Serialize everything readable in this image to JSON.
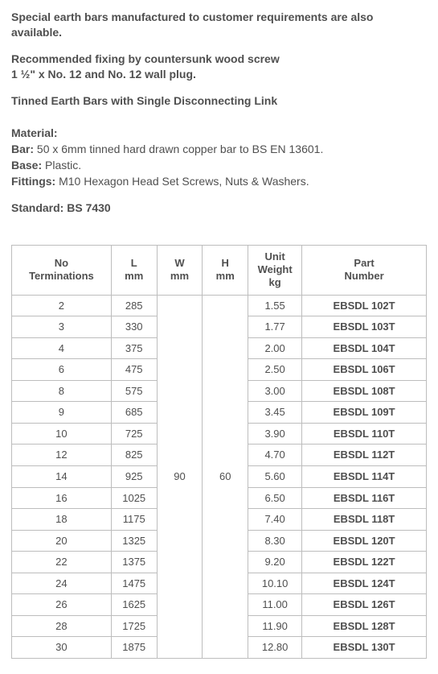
{
  "intro": {
    "p1": "Special earth bars manufactured to customer requirements are also available.",
    "p2a": "Recommended fixing by countersunk wood screw",
    "p2b": "1 ½\" x No. 12 and No. 12 wall plug.",
    "p3": "Tinned Earth Bars with Single Disconnecting Link"
  },
  "material": {
    "heading": "Material:",
    "bar_label": "Bar:",
    "bar_value": " 50 x 6mm tinned hard drawn copper bar to BS EN 13601.",
    "base_label": "Base:",
    "base_value": " Plastic.",
    "fittings_label": "Fittings:",
    "fittings_value": " M10 Hexagon Head Set Screws, Nuts & Washers."
  },
  "standard_label": "Standard: BS 7430",
  "table": {
    "headers": {
      "terminations_l1": "No",
      "terminations_l2": "Terminations",
      "L_l1": "L",
      "L_l2": "mm",
      "W_l1": "W",
      "W_l2": "mm",
      "H_l1": "H",
      "H_l2": "mm",
      "weight_l1": "Unit",
      "weight_l2": "Weight",
      "weight_l3": "kg",
      "part_l1": "Part",
      "part_l2": "Number"
    },
    "shared": {
      "W": "90",
      "H": "60"
    },
    "rows": [
      {
        "term": "2",
        "L": "285",
        "wt": "1.55",
        "part": "EBSDL 102T"
      },
      {
        "term": "3",
        "L": "330",
        "wt": "1.77",
        "part": "EBSDL 103T"
      },
      {
        "term": "4",
        "L": "375",
        "wt": "2.00",
        "part": "EBSDL 104T"
      },
      {
        "term": "6",
        "L": "475",
        "wt": "2.50",
        "part": "EBSDL 106T"
      },
      {
        "term": "8",
        "L": "575",
        "wt": "3.00",
        "part": "EBSDL 108T"
      },
      {
        "term": "9",
        "L": "685",
        "wt": "3.45",
        "part": "EBSDL 109T"
      },
      {
        "term": "10",
        "L": "725",
        "wt": "3.90",
        "part": "EBSDL 110T"
      },
      {
        "term": "12",
        "L": "825",
        "wt": "4.70",
        "part": "EBSDL 112T"
      },
      {
        "term": "14",
        "L": "925",
        "wt": "5.60",
        "part": "EBSDL 114T"
      },
      {
        "term": "16",
        "L": "1025",
        "wt": "6.50",
        "part": "EBSDL 116T"
      },
      {
        "term": "18",
        "L": "1175",
        "wt": "7.40",
        "part": "EBSDL 118T"
      },
      {
        "term": "20",
        "L": "1325",
        "wt": "8.30",
        "part": "EBSDL 120T"
      },
      {
        "term": "22",
        "L": "1375",
        "wt": "9.20",
        "part": "EBSDL 122T"
      },
      {
        "term": "24",
        "L": "1475",
        "wt": "10.10",
        "part": "EBSDL 124T"
      },
      {
        "term": "26",
        "L": "1625",
        "wt": "11.00",
        "part": "EBSDL 126T"
      },
      {
        "term": "28",
        "L": "1725",
        "wt": "11.90",
        "part": "EBSDL 128T"
      },
      {
        "term": "30",
        "L": "1875",
        "wt": "12.80",
        "part": "EBSDL 130T"
      }
    ]
  }
}
